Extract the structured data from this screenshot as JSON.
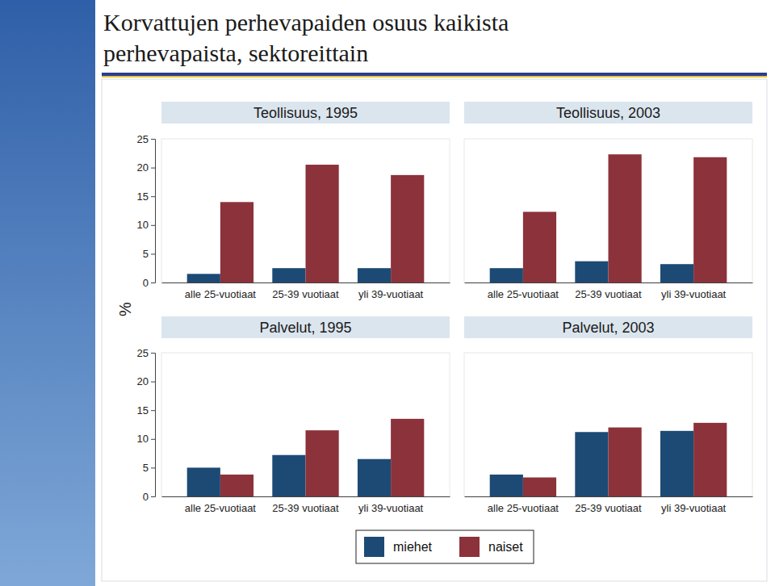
{
  "title": "Korvattujen perhevapaiden osuus kaikista perhevapaista, sektoreittain",
  "ylabel": "%",
  "chart_data": [
    {
      "type": "bar",
      "title": "Teollisuus, 1995",
      "categories": [
        "alle 25-vuotiaat",
        "25-39 vuotiaat",
        "yli 39-vuotiaat"
      ],
      "series": [
        {
          "name": "miehet",
          "color": "#1c4a75",
          "values": [
            1.5,
            2.5,
            2.5
          ]
        },
        {
          "name": "naiset",
          "color": "#8c323b",
          "values": [
            14,
            20.5,
            18.7
          ]
        }
      ],
      "ylim": [
        0,
        25
      ],
      "yticks": [
        0,
        5,
        10,
        15,
        20,
        25
      ]
    },
    {
      "type": "bar",
      "title": "Teollisuus, 2003",
      "categories": [
        "alle 25-vuotiaat",
        "25-39 vuotiaat",
        "yli 39-vuotiaat"
      ],
      "series": [
        {
          "name": "miehet",
          "color": "#1c4a75",
          "values": [
            2.5,
            3.7,
            3.2
          ]
        },
        {
          "name": "naiset",
          "color": "#8c323b",
          "values": [
            12.3,
            22.3,
            21.8
          ]
        }
      ],
      "ylim": [
        0,
        25
      ],
      "yticks": [
        0,
        5,
        10,
        15,
        20,
        25
      ],
      "tick_labels": "x"
    },
    {
      "type": "bar",
      "title": "Palvelut, 1995",
      "categories": [
        "alle 25-vuotiaat",
        "25-39 vuotiaat",
        "yli 39-vuotiaat"
      ],
      "series": [
        {
          "name": "miehet",
          "color": "#1c4a75",
          "values": [
            5,
            7.2,
            6.5
          ]
        },
        {
          "name": "naiset",
          "color": "#8c323b",
          "values": [
            3.8,
            11.5,
            13.5
          ]
        }
      ],
      "ylim": [
        0,
        25
      ],
      "yticks": [
        0,
        5,
        10,
        15,
        20,
        25
      ]
    },
    {
      "type": "bar",
      "title": "Palvelut, 2003",
      "categories": [
        "alle 25-vuotiaat",
        "25-39 vuotiaat",
        "yli 39-vuotiaat"
      ],
      "series": [
        {
          "name": "miehet",
          "color": "#1c4a75",
          "values": [
            3.8,
            11.2,
            11.4
          ]
        },
        {
          "name": "naiset",
          "color": "#8c323b",
          "values": [
            3.3,
            12,
            12.8
          ]
        }
      ],
      "ylim": [
        0,
        25
      ],
      "yticks": [
        0,
        5,
        10,
        15,
        20,
        25
      ],
      "tick_labels": "x"
    }
  ]
}
